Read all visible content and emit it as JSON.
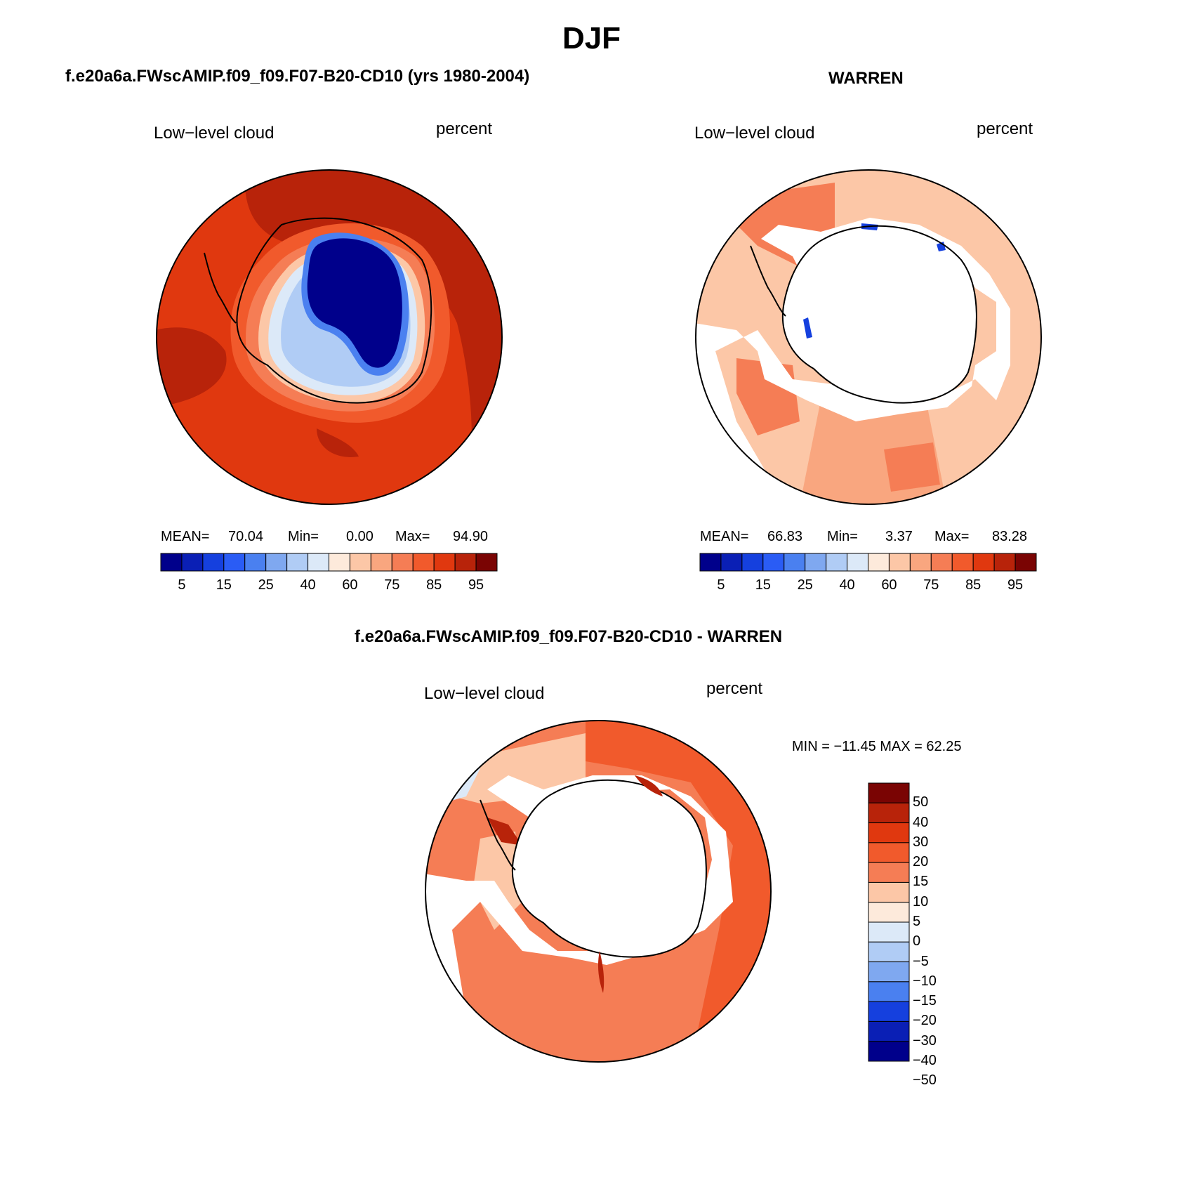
{
  "title": "DJF",
  "panels": {
    "model": {
      "heading": "f.e20a6a.FWscAMIP.f09_f09.F07-B20-CD10 (yrs 1980-2004)",
      "variable": "Low−level cloud",
      "units": "percent",
      "stats": {
        "mean_label": "MEAN=",
        "mean": "70.04",
        "min_label": "Min=",
        "min": "0.00",
        "max_label": "Max=",
        "max": "94.90"
      }
    },
    "obs": {
      "heading": "WARREN",
      "variable": "Low−level cloud",
      "units": "percent",
      "stats": {
        "mean_label": "MEAN=",
        "mean": "66.83",
        "min_label": "Min=",
        "min": "3.37",
        "max_label": "Max=",
        "max": "83.28"
      }
    },
    "diff": {
      "heading": "f.e20a6a.FWscAMIP.f09_f09.F07-B20-CD10 - WARREN",
      "variable": "Low−level cloud",
      "units": "percent",
      "minmax": "MIN = −11.45 MAX =   62.25"
    }
  },
  "abs_colorbar": {
    "colors": [
      "#00008b",
      "#0a1fb5",
      "#1540de",
      "#2a5cf5",
      "#4a80f0",
      "#7fa8f0",
      "#b0ccf5",
      "#dce9f8",
      "#fdeadb",
      "#fcc7a7",
      "#f9a67f",
      "#f57d55",
      "#f15a2c",
      "#e0380f",
      "#b8230a",
      "#7a0403"
    ],
    "labels": [
      "5",
      "15",
      "25",
      "40",
      "60",
      "75",
      "85",
      "95"
    ]
  },
  "diff_colorbar": {
    "colors_top_to_bottom": [
      "#7a0403",
      "#b8230a",
      "#e0380f",
      "#f15a2c",
      "#f57d55",
      "#fcc7a7",
      "#fdeadb",
      "#dce9f8",
      "#b0ccf5",
      "#7fa8f0",
      "#4a80f0",
      "#1540de",
      "#0a1fb5",
      "#00008b"
    ],
    "labels": [
      "50",
      "40",
      "30",
      "20",
      "15",
      "10",
      "5",
      "0",
      "−5",
      "−10",
      "−15",
      "−20",
      "−30",
      "−40",
      "−50"
    ]
  },
  "map_colors": {
    "ocean_dark": "#b8230a",
    "ocean_mid": "#e0380f",
    "ocean_light": "#f15a2c",
    "inland_blue": "#00008b",
    "obs_field": "#f9a67f",
    "obs_dark": "#f57d55",
    "diff_field": "#f57d55",
    "diff_dark": "#f15a2c"
  }
}
